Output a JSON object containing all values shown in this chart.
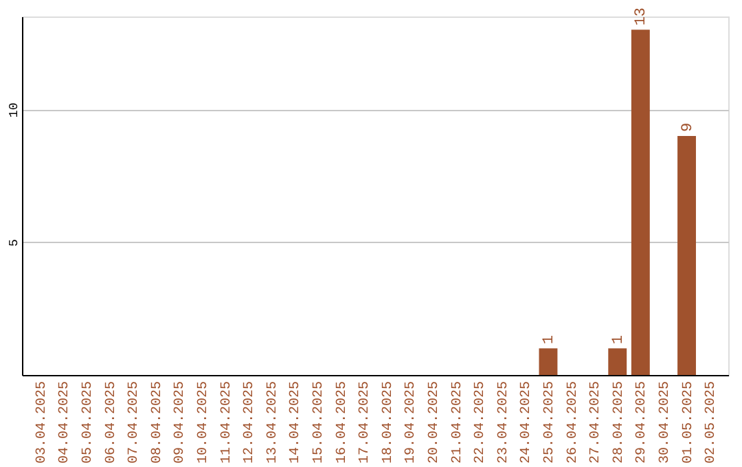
{
  "chart_data": {
    "type": "bar",
    "categories": [
      "03.04.2025",
      "04.04.2025",
      "05.04.2025",
      "06.04.2025",
      "07.04.2025",
      "08.04.2025",
      "09.04.2025",
      "10.04.2025",
      "11.04.2025",
      "12.04.2025",
      "13.04.2025",
      "14.04.2025",
      "15.04.2025",
      "16.04.2025",
      "17.04.2025",
      "18.04.2025",
      "19.04.2025",
      "20.04.2025",
      "21.04.2025",
      "22.04.2025",
      "23.04.2025",
      "24.04.2025",
      "25.04.2025",
      "26.04.2025",
      "27.04.2025",
      "28.04.2025",
      "29.04.2025",
      "30.04.2025",
      "01.05.2025",
      "02.05.2025"
    ],
    "values": [
      0,
      0,
      0,
      0,
      0,
      0,
      0,
      0,
      0,
      0,
      0,
      0,
      0,
      0,
      0,
      0,
      0,
      0,
      0,
      0,
      0,
      0,
      1,
      0,
      0,
      1,
      13,
      0,
      9,
      0
    ],
    "value_labels": [
      null,
      null,
      null,
      null,
      null,
      null,
      null,
      null,
      null,
      null,
      null,
      null,
      null,
      null,
      null,
      null,
      null,
      null,
      null,
      null,
      null,
      null,
      "1",
      null,
      null,
      "1",
      "13",
      null,
      "9",
      null
    ],
    "color": "#a0522d",
    "ylim": [
      0,
      13.5
    ],
    "yticks": [
      5,
      10
    ],
    "grid": "y"
  }
}
